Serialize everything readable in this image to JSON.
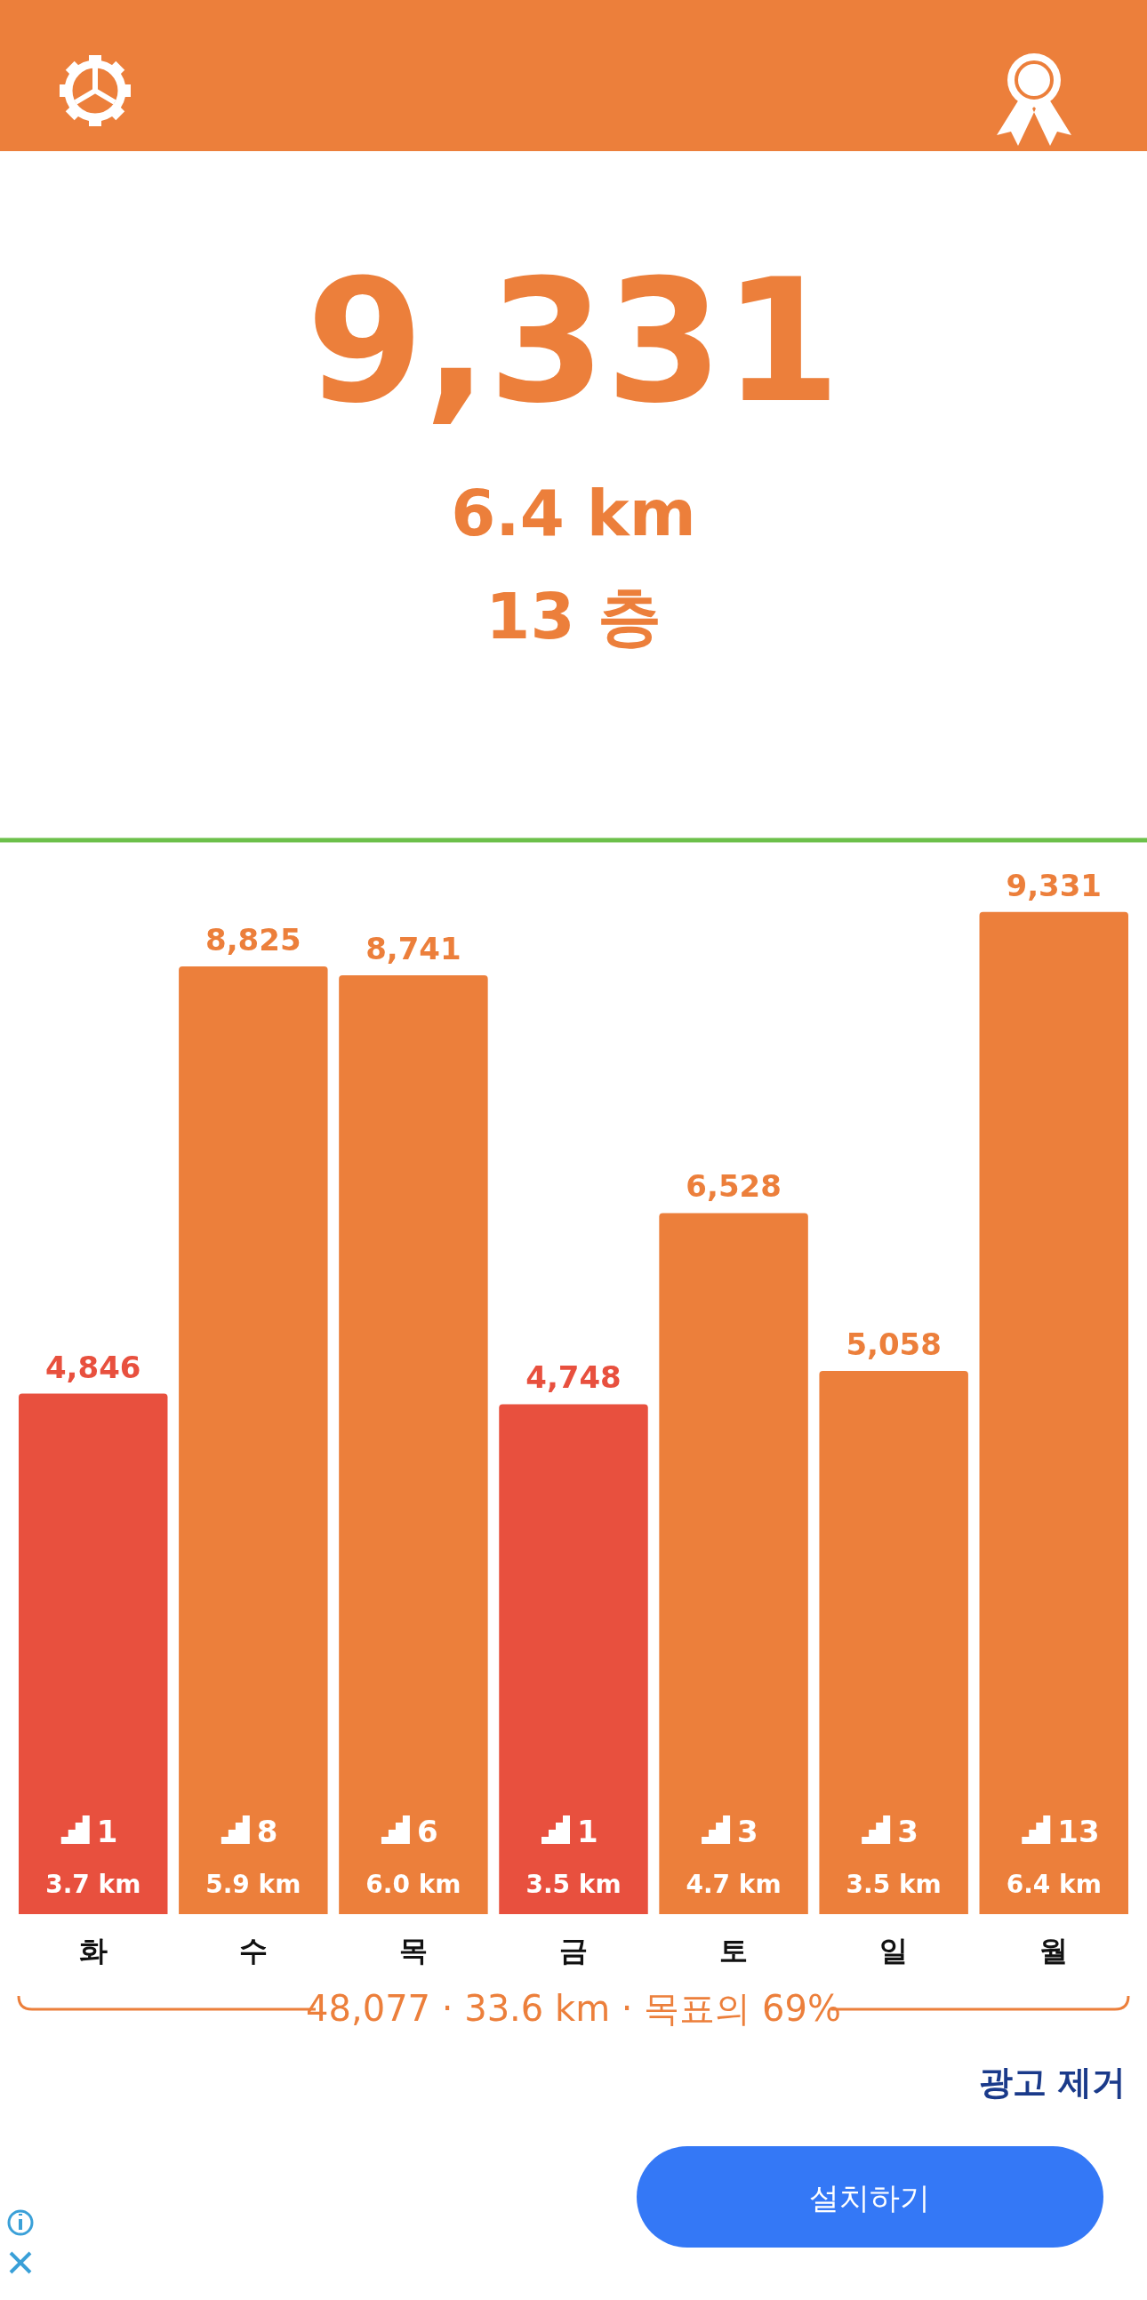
{
  "chart_data": {
    "type": "bar",
    "title": "9,331",
    "subtitle": "6.4 km",
    "categories": [
      "화",
      "수",
      "목",
      "금",
      "토",
      "일",
      "월"
    ],
    "values": [
      4846,
      8825,
      8741,
      4748,
      6528,
      5058,
      9331
    ],
    "colors": [
      "#e8503e",
      "#ec7f3b",
      "#ec7f3b",
      "#e8503e",
      "#ec7f3b",
      "#ec7f3b",
      "#ec7f3b"
    ],
    "value_labels": [
      "4,846",
      "8,825",
      "8,741",
      "4,748",
      "6,528",
      "5,058",
      "9,331"
    ],
    "ylim": [
      0,
      10000
    ],
    "tick_labels": "x",
    "ref_lines": [
      {
        "axis": "y",
        "value": 10000,
        "color": "#6cc04a"
      }
    ],
    "annotations": [
      "13 층",
      "1",
      "3.7 km",
      "8",
      "5.9 km",
      "6",
      "6.0 km",
      "1",
      "3.5 km",
      "3",
      "4.7 km",
      "3",
      "3.5 km",
      "13",
      "6.4 km",
      "48,077 · 33.6 km · 목표의 69%",
      "광고 제거",
      "설치하기"
    ]
  }
}
